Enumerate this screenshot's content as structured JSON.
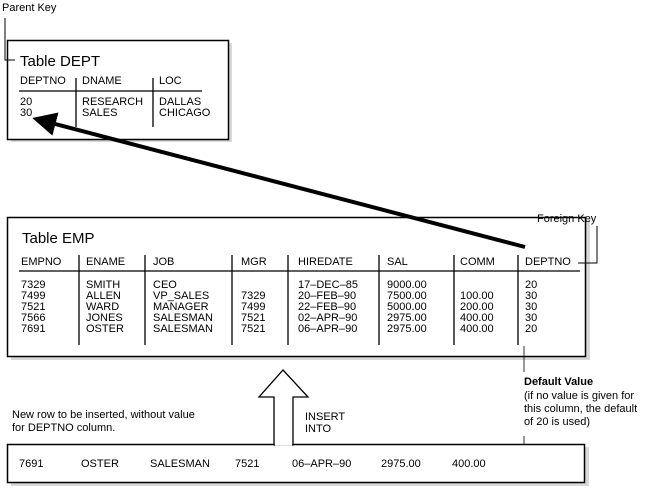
{
  "labels": {
    "parent_key": "Parent Key",
    "foreign_key": "Foreign Key",
    "default_value_title": "Default Value",
    "default_value_lines": [
      "(if no value is given for",
      "this column, the default",
      "of 20 is used)"
    ],
    "new_row_lines": [
      "New row to be inserted, without value",
      "for DEPTNO column."
    ],
    "insert_into_lines": [
      "INSERT",
      "INTO"
    ]
  },
  "dept": {
    "title": "Table DEPT",
    "columns": [
      "DEPTNO",
      "DNAME",
      "LOC"
    ],
    "rows": [
      [
        "20",
        "RESEARCH",
        "DALLAS"
      ],
      [
        "30",
        "SALES",
        "CHICAGO"
      ]
    ]
  },
  "emp": {
    "title": "Table EMP",
    "columns": [
      "EMPNO",
      "ENAME",
      "JOB",
      "MGR",
      "HIREDATE",
      "SAL",
      "COMM",
      "DEPTNO"
    ],
    "rows": [
      [
        "7329",
        "SMITH",
        "CEO",
        "",
        "17–DEC–85",
        "9000.00",
        "",
        "20"
      ],
      [
        "7499",
        "ALLEN",
        "VP_SALES",
        "7329",
        "20–FEB–90",
        "7500.00",
        "100.00",
        "30"
      ],
      [
        "7521",
        "WARD",
        "MANAGER",
        "7499",
        "22–FEB–90",
        "5000.00",
        "200.00",
        "30"
      ],
      [
        "7566",
        "JONES",
        "SALESMAN",
        "7521",
        "02–APR–90",
        "2975.00",
        "400.00",
        "30"
      ],
      [
        "7691",
        "OSTER",
        "SALESMAN",
        "7521",
        "06–APR–90",
        "2975.00",
        "400.00",
        "20"
      ]
    ]
  },
  "new_row": [
    "7691",
    "OSTER",
    "SALESMAN",
    "7521",
    "06–APR–90",
    "2975.00",
    "400.00"
  ]
}
